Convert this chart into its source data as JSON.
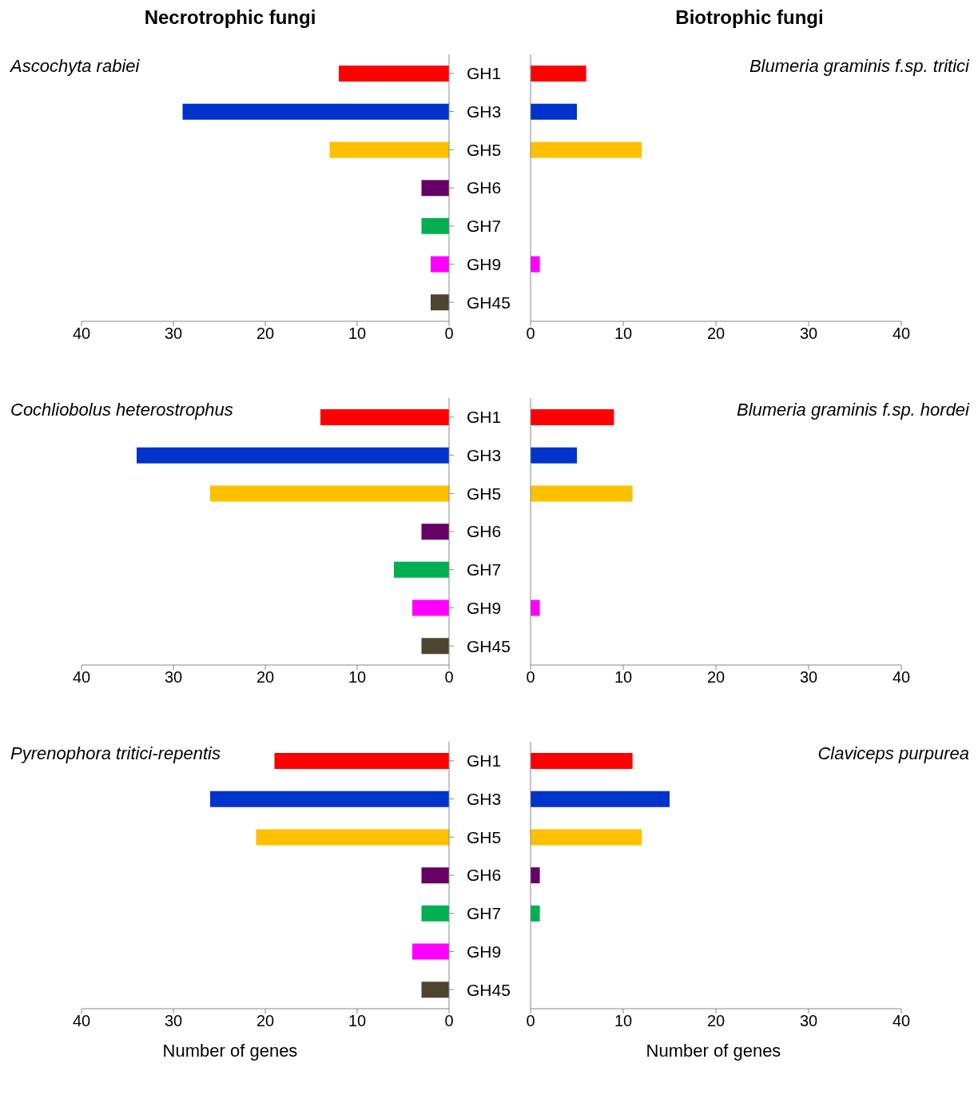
{
  "chart_data": [
    {
      "type": "bar",
      "orientation": "horizontal",
      "title": "Necrotrophic fungi",
      "subtitle": "Ascochyta rabiei",
      "categories": [
        "GH1",
        "GH3",
        "GH5",
        "GH6",
        "GH7",
        "GH9",
        "GH45"
      ],
      "values": [
        12,
        29,
        13,
        3,
        3,
        2,
        2
      ],
      "colors": [
        "#ff0000",
        "#0033cc",
        "#ffc000",
        "#660066",
        "#00b050",
        "#ff00ff",
        "#4d4530"
      ],
      "xlim": [
        40,
        0
      ],
      "xticks": [
        40,
        30,
        20,
        10,
        0
      ]
    },
    {
      "type": "bar",
      "orientation": "horizontal",
      "title": "Biotrophic fungi",
      "subtitle": "Blumeria graminis f.sp. tritici",
      "categories": [
        null,
        null,
        null,
        null,
        null,
        null,
        null
      ],
      "values": [
        6,
        5,
        12,
        0,
        0,
        1,
        0
      ],
      "colors": [
        "#ff0000",
        "#0033cc",
        "#ffc000",
        "#660066",
        "#00b050",
        "#ff00ff",
        "#4d4530"
      ],
      "xlim": [
        0,
        40
      ],
      "xticks": [
        0,
        10,
        20,
        30,
        40
      ],
      "tick_labels": "x"
    },
    {
      "type": "bar",
      "orientation": "horizontal",
      "subtitle": "Cochliobolus heterostrophus",
      "categories": [
        "GH1",
        "GH3",
        "GH5",
        "GH6",
        "GH7",
        "GH9",
        "GH45"
      ],
      "values": [
        14,
        34,
        26,
        3,
        6,
        4,
        3
      ],
      "colors": [
        "#ff0000",
        "#0033cc",
        "#ffc000",
        "#660066",
        "#00b050",
        "#ff00ff",
        "#4d4530"
      ],
      "xlim": [
        40,
        0
      ],
      "xticks": [
        40,
        30,
        20,
        10,
        0
      ]
    },
    {
      "type": "bar",
      "orientation": "horizontal",
      "subtitle": "Blumeria graminis f.sp. hordei",
      "categories": [
        null,
        null,
        null,
        null,
        null,
        null,
        null
      ],
      "values": [
        9,
        5,
        11,
        0,
        0,
        1,
        0
      ],
      "colors": [
        "#ff0000",
        "#0033cc",
        "#ffc000",
        "#660066",
        "#00b050",
        "#ff00ff",
        "#4d4530"
      ],
      "xlim": [
        0,
        40
      ],
      "xticks": [
        0,
        10,
        20,
        30,
        40
      ],
      "tick_labels": "x"
    },
    {
      "type": "bar",
      "orientation": "horizontal",
      "subtitle": "Pyrenophora tritici-repentis",
      "xlabel": "Number of genes",
      "categories": [
        "GH1",
        "GH3",
        "GH5",
        "GH6",
        "GH7",
        "GH9",
        "GH45"
      ],
      "values": [
        19,
        26,
        21,
        3,
        3,
        4,
        3
      ],
      "colors": [
        "#ff0000",
        "#0033cc",
        "#ffc000",
        "#660066",
        "#00b050",
        "#ff00ff",
        "#4d4530"
      ],
      "xlim": [
        40,
        0
      ],
      "xticks": [
        40,
        30,
        20,
        10,
        0
      ]
    },
    {
      "type": "bar",
      "orientation": "horizontal",
      "subtitle": "Claviceps purpurea",
      "xlabel": "Number of genes",
      "categories": [
        null,
        null,
        null,
        null,
        null,
        null,
        null
      ],
      "values": [
        11,
        15,
        12,
        1,
        1,
        0,
        0
      ],
      "colors": [
        "#ff0000",
        "#0033cc",
        "#ffc000",
        "#660066",
        "#00b050",
        "#ff00ff",
        "#4d4530"
      ],
      "xlim": [
        0,
        40
      ],
      "xticks": [
        0,
        10,
        20,
        30,
        40
      ],
      "tick_labels": "x"
    }
  ]
}
